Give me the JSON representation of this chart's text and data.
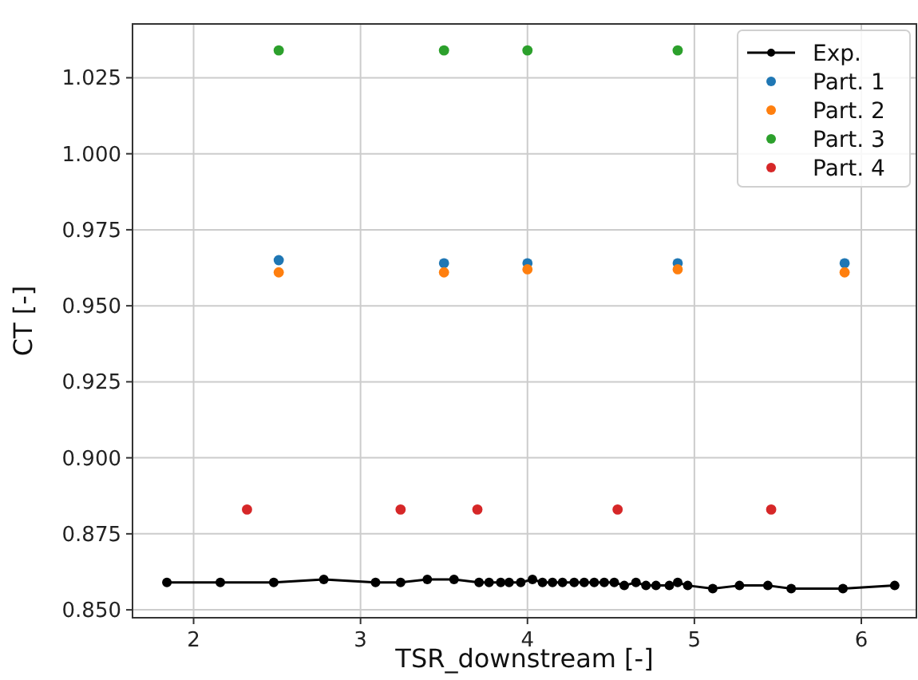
{
  "chart_data": {
    "type": "scatter",
    "xlabel": "TSR_downstream [-]",
    "ylabel": "CT [-]",
    "xlim": [
      1.634,
      6.33
    ],
    "ylim": [
      0.8474,
      1.0427
    ],
    "xticks": [
      2,
      3,
      4,
      5,
      6
    ],
    "yticks": [
      {
        "value": 0.85,
        "label": "0.850"
      },
      {
        "value": 0.875,
        "label": "0.875"
      },
      {
        "value": 0.9,
        "label": "0.900"
      },
      {
        "value": 0.925,
        "label": "0.925"
      },
      {
        "value": 0.95,
        "label": "0.950"
      },
      {
        "value": 0.975,
        "label": "0.975"
      },
      {
        "value": 1.0,
        "label": "1.000"
      },
      {
        "value": 1.025,
        "label": "1.025"
      }
    ],
    "grid": true,
    "legend": "top right",
    "marker": "circle",
    "series": [
      {
        "name": "Exp.",
        "type": "line",
        "color": "#000000",
        "x": [
          1.84,
          2.16,
          2.48,
          2.78,
          3.09,
          3.24,
          3.4,
          3.56,
          3.71,
          3.77,
          3.84,
          3.89,
          3.96,
          4.03,
          4.09,
          4.15,
          4.21,
          4.28,
          4.34,
          4.4,
          4.46,
          4.52,
          4.58,
          4.65,
          4.71,
          4.77,
          4.85,
          4.9,
          4.96,
          5.11,
          5.27,
          5.44,
          5.58,
          5.89,
          6.2
        ],
        "values": [
          0.859,
          0.859,
          0.859,
          0.86,
          0.859,
          0.859,
          0.86,
          0.86,
          0.859,
          0.859,
          0.859,
          0.859,
          0.859,
          0.86,
          0.859,
          0.859,
          0.859,
          0.859,
          0.859,
          0.859,
          0.859,
          0.859,
          0.858,
          0.859,
          0.858,
          0.858,
          0.858,
          0.859,
          0.858,
          0.857,
          0.858,
          0.858,
          0.857,
          0.857,
          0.858
        ]
      },
      {
        "name": "Part. 1",
        "color": "#1f77b4",
        "x": [
          2.51,
          3.5,
          4.0,
          4.9,
          5.9
        ],
        "values": [
          0.965,
          0.964,
          0.964,
          0.964,
          0.964
        ]
      },
      {
        "name": "Part. 2",
        "color": "#ff7f0e",
        "x": [
          2.51,
          3.5,
          4.0,
          4.9,
          5.9
        ],
        "values": [
          0.961,
          0.961,
          0.962,
          0.962,
          0.961
        ]
      },
      {
        "name": "Part. 3",
        "color": "#2ca02c",
        "x": [
          2.51,
          3.5,
          4.0,
          4.9
        ],
        "values": [
          1.034,
          1.034,
          1.034,
          1.034
        ]
      },
      {
        "name": "Part. 4",
        "color": "#d62728",
        "x": [
          2.32,
          3.24,
          3.7,
          4.54,
          5.46
        ],
        "values": [
          0.883,
          0.883,
          0.883,
          0.883,
          0.883
        ]
      }
    ]
  }
}
